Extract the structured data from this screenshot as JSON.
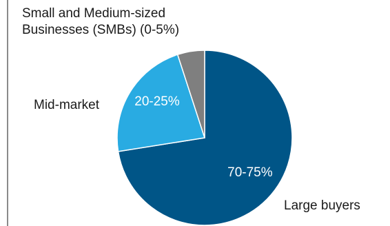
{
  "chart_data": {
    "type": "pie",
    "start_angle_deg": 0,
    "direction": "clockwise",
    "slices": [
      {
        "category": "Large buyers",
        "value": 72.5,
        "value_label": "70-75%",
        "color": "#005587"
      },
      {
        "category": "Mid-market",
        "value": 22.5,
        "value_label": "20-25%",
        "color": "#29abe2"
      },
      {
        "category": "Small and Medium-sized Businesses (SMBs) (0-5%)",
        "value": 5,
        "value_label": "",
        "color": "#7f7f7f"
      }
    ]
  },
  "labels": {
    "smb_line1": "Small and Medium-sized",
    "smb_line2": "Businesses (SMBs) (0-5%)",
    "mid": "Mid-market",
    "large": "Large buyers"
  }
}
